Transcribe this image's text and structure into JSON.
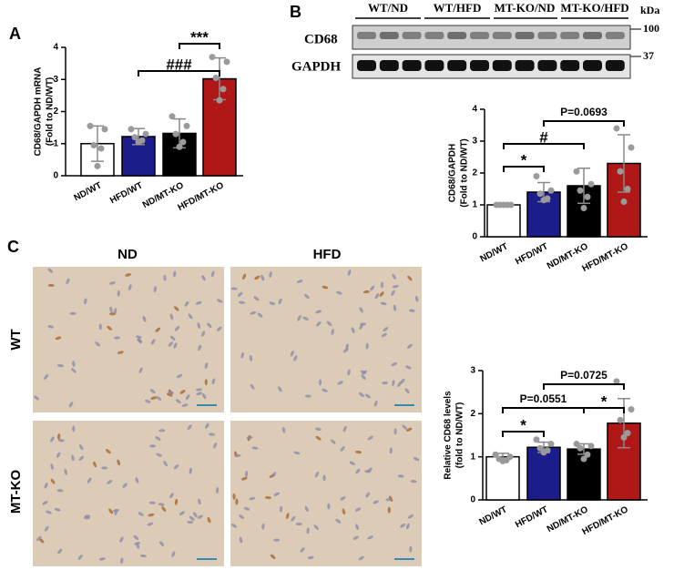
{
  "figure": {
    "panel_labels": [
      "A",
      "B",
      "C"
    ],
    "blot": {
      "groups": [
        "WT/ND",
        "WT/HFD",
        "MT-KO/ND",
        "MT-KO/HFD"
      ],
      "unit": "kDa",
      "rows": [
        "CD68",
        "GAPDH"
      ],
      "markers": [
        100,
        37
      ]
    },
    "micrographs": {
      "columns": [
        "ND",
        "HFD"
      ],
      "rows": [
        "WT",
        "MT-KO"
      ]
    }
  },
  "chart_data": [
    {
      "type": "bar",
      "ylabel": [
        "CD68/GAPDH mRNA",
        "(Fold to ND/WT)"
      ],
      "categories": [
        "ND/WT",
        "HFD/WT",
        "ND/MT-KO",
        "HFD/MT-KO"
      ],
      "values": [
        1.0,
        1.22,
        1.32,
        3.02
      ],
      "errors": [
        0.55,
        0.25,
        0.45,
        0.65
      ],
      "points": [
        [
          1.55,
          1.45,
          0.95,
          0.85,
          0.3
        ],
        [
          1.45,
          1.3,
          1.2,
          1.1,
          1.05
        ],
        [
          1.85,
          1.55,
          1.3,
          1.05,
          0.9
        ],
        [
          3.7,
          3.55,
          3.05,
          2.7,
          2.35
        ]
      ],
      "colors": [
        "#ffffff",
        "#1c1c8a",
        "#000000",
        "#b01818"
      ],
      "point_color": "#9a9a9a",
      "ylim": [
        0,
        4
      ],
      "yticks": [
        0,
        1,
        2,
        3,
        4
      ],
      "annotations": [
        "***",
        "###"
      ]
    },
    {
      "type": "bar",
      "ylabel": [
        "CD68/GAPDH",
        "(Fold to ND/WT)"
      ],
      "categories": [
        "ND/WT",
        "HFD/WT",
        "ND/MT-KO",
        "HFD/MT-KO"
      ],
      "values": [
        1.0,
        1.4,
        1.6,
        2.3
      ],
      "errors": [
        0.02,
        0.3,
        0.55,
        0.9
      ],
      "points": [
        [
          1.0,
          1.0,
          1.0,
          1.0,
          1.0
        ],
        [
          1.9,
          1.45,
          1.35,
          1.2,
          1.15
        ],
        [
          2.05,
          1.65,
          1.45,
          1.25,
          0.9
        ],
        [
          3.4,
          2.8,
          2.05,
          1.5,
          1.1
        ]
      ],
      "colors": [
        "#ffffff",
        "#1c1c8a",
        "#000000",
        "#b01818"
      ],
      "point_color": "#9a9a9a",
      "ylim": [
        0,
        4
      ],
      "yticks": [
        0,
        1,
        2,
        3,
        4
      ],
      "annotations": [
        "*",
        "#",
        "P=0.0693"
      ]
    },
    {
      "type": "bar",
      "ylabel": [
        "Relative CD68 levels",
        "(fold to ND/WT)"
      ],
      "categories": [
        "ND/WT",
        "HFD/WT",
        "ND/MT-KO",
        "HFD/MT-KO"
      ],
      "values": [
        1.0,
        1.22,
        1.18,
        1.78
      ],
      "errors": [
        0.08,
        0.12,
        0.12,
        0.57
      ],
      "points": [
        [
          1.05,
          1.0,
          0.95,
          0.92,
          0.9
        ],
        [
          1.4,
          1.3,
          1.2,
          1.15,
          1.1
        ],
        [
          1.3,
          1.25,
          1.2,
          1.05,
          0.95
        ],
        [
          2.75,
          2.1,
          1.85,
          1.55,
          1.45
        ]
      ],
      "colors": [
        "#ffffff",
        "#1c1c8a",
        "#000000",
        "#b01818"
      ],
      "point_color": "#9a9a9a",
      "ylim": [
        0,
        3
      ],
      "yticks": [
        0,
        1,
        2,
        3
      ],
      "annotations": [
        "*",
        "P=0.0551",
        "*",
        "P=0.0725"
      ]
    }
  ]
}
